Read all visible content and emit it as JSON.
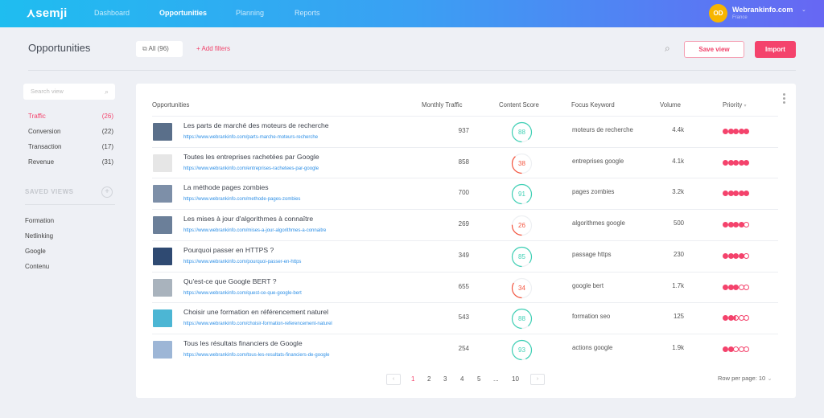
{
  "header": {
    "logo": "semji",
    "nav": [
      "Dashboard",
      "Opportunities",
      "Planning",
      "Reports"
    ],
    "active_nav": "Opportunities",
    "avatar_initials": "OD",
    "site": "Webrankinfo.com",
    "country": "France",
    "avatar_color": "#f7b500"
  },
  "toolbar": {
    "title": "Opportunities",
    "all_label": "All (96)",
    "add_filters": "+ Add filters",
    "save_view": "Save view",
    "import": "Import",
    "accent": "#f4436c"
  },
  "sidebar": {
    "search_placeholder": "Search view",
    "categories": [
      {
        "label": "Traffic",
        "count": "(26)",
        "active": true
      },
      {
        "label": "Conversion",
        "count": "(22)"
      },
      {
        "label": "Transaction",
        "count": "(17)"
      },
      {
        "label": "Revenue",
        "count": "(31)"
      }
    ],
    "saved_views_heading": "SAVED VIEWS",
    "saved_views": [
      "Formation",
      "Netlinking",
      "Google",
      "Contenu"
    ]
  },
  "table": {
    "columns": [
      "Opportunities",
      "Monthly Traffic",
      "Content Score",
      "Focus Keyword",
      "Volume",
      "Priority"
    ],
    "rows": [
      {
        "title": "Les parts de marché des moteurs de recherche",
        "url": "https://www.webrankinfo.com/parts-marche-moteurs-recherche",
        "traffic": "937",
        "score": 88,
        "keyword": "moteurs de recherche",
        "volume": "4.4k",
        "priority": 5,
        "thumb": "#5a6f8a"
      },
      {
        "title": "Toutes les entreprises rachetées par Google",
        "url": "https://www.webrankinfo.com/entreprises-rachetees-par-google",
        "traffic": "858",
        "score": 38,
        "keyword": "entreprises google",
        "volume": "4.1k",
        "priority": 5,
        "thumb": "#e6e6e6"
      },
      {
        "title": "La méthode pages zombies",
        "url": "https://www.webrankinfo.com/methode-pages-zombies",
        "traffic": "700",
        "score": 91,
        "keyword": "pages zombies",
        "volume": "3.2k",
        "priority": 5,
        "thumb": "#7d8fa8"
      },
      {
        "title": "Les mises à jour d'algorithmes à connaître",
        "url": "https://www.webrankinfo.com/mises-a-jour-algorithmes-a-connaitre",
        "traffic": "269",
        "score": 26,
        "keyword": "algorithmes google",
        "volume": "500",
        "priority": 4,
        "thumb": "#6b7f99"
      },
      {
        "title": "Pourquoi passer en HTTPS ?",
        "url": "https://www.webrankinfo.com/pourquoi-passer-en-https",
        "traffic": "349",
        "score": 85,
        "keyword": "passage https",
        "volume": "230",
        "priority": 4,
        "thumb": "#2f4a72"
      },
      {
        "title": "Qu'est-ce que Google BERT ?",
        "url": "https://www.webrankinfo.com/quest-ce-que-google-bert",
        "traffic": "655",
        "score": 34,
        "keyword": "google bert",
        "volume": "1.7k",
        "priority": 3,
        "thumb": "#a9b3bd"
      },
      {
        "title": "Choisir une formation en référencement naturel",
        "url": "https://www.webrankinfo.com/choisir-formation-referencement-naturel",
        "traffic": "543",
        "score": 88,
        "keyword": "formation seo",
        "volume": "125",
        "priority": 2.5,
        "thumb": "#4cb6d4"
      },
      {
        "title": "Tous les résultats financiers de Google",
        "url": "https://www.webrankinfo.com/tous-les-resultats-financiers-de-google",
        "traffic": "254",
        "score": 93,
        "keyword": "actions google",
        "volume": "1.9k",
        "priority": 2,
        "thumb": "#9db6d6"
      }
    ],
    "colors": {
      "good": "#3fd0b5",
      "bad": "#f4553f",
      "priority": "#f4436c"
    }
  },
  "pagination": {
    "pages": [
      "1",
      "2",
      "3",
      "4",
      "5",
      "...",
      "10"
    ],
    "current": "1",
    "rows_per_page": "Row per page: 10"
  }
}
